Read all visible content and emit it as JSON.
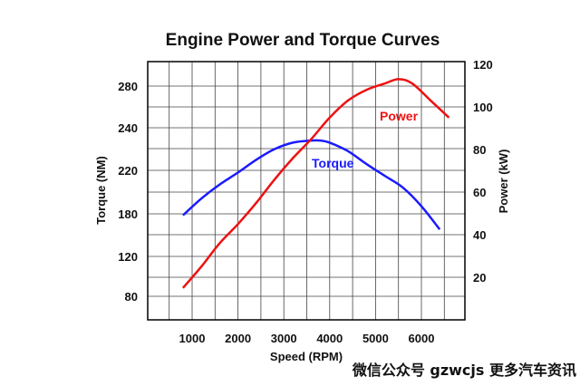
{
  "chart_data": {
    "type": "line",
    "title": "Engine Power and Torque Curves",
    "xlabel": "Speed (RPM)",
    "ylabel_left": "Torque (NM)",
    "ylabel_right": "Power (kW)",
    "x_ticks": [
      "1000",
      "2000",
      "3000",
      "4000",
      "5000",
      "6000"
    ],
    "y_left_ticks": [
      "80",
      "120",
      "180",
      "220",
      "240",
      "280"
    ],
    "y_right_ticks": [
      "20",
      "40",
      "60",
      "80",
      "100",
      "120"
    ],
    "grid": true,
    "series": [
      {
        "name": "Torque",
        "color": "#1a1aff",
        "axis": "left",
        "x": [
          800,
          1200,
          1600,
          2000,
          2400,
          2800,
          3200,
          3600,
          3800,
          4000,
          4400,
          4800,
          5200,
          5600,
          6000,
          6400
        ],
        "y": [
          178,
          194,
          207,
          218,
          225,
          230,
          233,
          234,
          234,
          233,
          229,
          223,
          215,
          204,
          187,
          158
        ]
      },
      {
        "name": "Power",
        "color": "#ee1111",
        "axis": "right",
        "x": [
          800,
          1200,
          1600,
          2000,
          2400,
          2800,
          3200,
          3600,
          4000,
          4400,
          4800,
          5200,
          5500,
          5800,
          6200,
          6600
        ],
        "y": [
          15,
          25,
          36,
          45,
          55,
          66,
          76,
          85,
          95,
          103,
          108,
          111,
          113,
          111,
          103,
          95
        ]
      }
    ],
    "series_labels": [
      "Power",
      "Torque"
    ]
  },
  "watermark": "微信公众号 gzwcjs 更多汽车资讯",
  "colors": {
    "grid": "#444444",
    "axis": "#000000"
  }
}
